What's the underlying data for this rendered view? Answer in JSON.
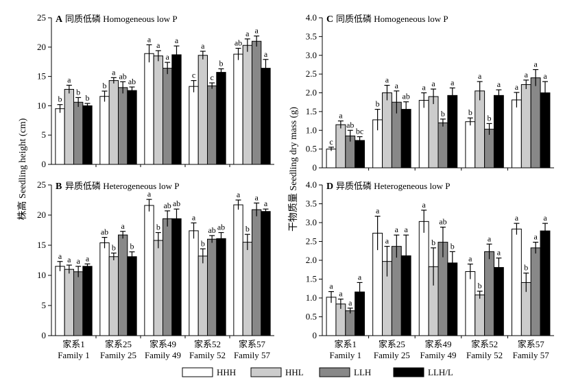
{
  "legend": {
    "entries": [
      {
        "label": "HHH",
        "color": "#ffffff"
      },
      {
        "label": "HHL",
        "color": "#cccccc"
      },
      {
        "label": "LLH",
        "color": "#888888"
      },
      {
        "label": "LLH/L",
        "color": "#000000"
      }
    ]
  },
  "axis_titles": {
    "left": "株高 Seedling height (cm)",
    "right": "干物质量 Seedling dry mass (g)"
  },
  "category_labels": [
    {
      "cn": "家系1",
      "en": "Family 1"
    },
    {
      "cn": "家系25",
      "en": "Family 25"
    },
    {
      "cn": "家系49",
      "en": "Family 49"
    },
    {
      "cn": "家系52",
      "en": "Family 52"
    },
    {
      "cn": "家系57",
      "en": "Family 57"
    }
  ],
  "chart_data": [
    {
      "type": "bar",
      "panel": "A",
      "title": "同质低磷 Homogeneous low P",
      "ylabel": "株高 Seedling height (cm)",
      "ylim": [
        0,
        25
      ],
      "yticks": [
        0,
        5,
        10,
        15,
        20,
        25
      ],
      "categories": [
        "Family 1",
        "Family 25",
        "Family 49",
        "Family 52",
        "Family 57"
      ],
      "series": [
        {
          "name": "HHH",
          "values": [
            9.5,
            11.6,
            18.9,
            13.3,
            18.8
          ],
          "errors": [
            0.7,
            0.9,
            1.5,
            1.0,
            1.0
          ],
          "labels": [
            "b",
            "b",
            "a",
            "c",
            "ab"
          ]
        },
        {
          "name": "HHL",
          "values": [
            12.8,
            14.3,
            18.5,
            18.6,
            20.3
          ],
          "errors": [
            0.7,
            0.5,
            0.9,
            0.7,
            1.1
          ],
          "labels": [
            "a",
            "a",
            "a",
            "a",
            "a"
          ]
        },
        {
          "name": "LLH",
          "values": [
            10.6,
            13.1,
            16.4,
            13.4,
            21.0
          ],
          "errors": [
            0.8,
            1.0,
            1.0,
            0.5,
            0.9
          ],
          "labels": [
            "b",
            "ab",
            "a",
            "c",
            "a"
          ]
        },
        {
          "name": "LLH/L",
          "values": [
            10.0,
            12.6,
            18.7,
            15.7,
            16.4
          ],
          "errors": [
            0.4,
            0.6,
            1.5,
            0.6,
            1.5
          ],
          "labels": [
            "b",
            "ab",
            "a",
            "b",
            "a"
          ]
        }
      ]
    },
    {
      "type": "bar",
      "panel": "B",
      "title": "异质低磷 Heterogeneous low P",
      "ylabel": "株高 Seedling height (cm)",
      "ylim": [
        0,
        25
      ],
      "yticks": [
        0,
        5,
        10,
        15,
        20,
        25
      ],
      "categories": [
        "Family 1",
        "Family 25",
        "Family 49",
        "Family 52",
        "Family 57"
      ],
      "series": [
        {
          "name": "HHH",
          "values": [
            11.5,
            15.4,
            21.6,
            17.4,
            21.7
          ],
          "errors": [
            0.8,
            0.9,
            1.0,
            1.3,
            0.8
          ],
          "labels": [
            "a",
            "ab",
            "a",
            "a",
            "a"
          ]
        },
        {
          "name": "HHL",
          "values": [
            11.0,
            13.1,
            15.8,
            13.2,
            15.5
          ],
          "errors": [
            0.7,
            0.6,
            1.3,
            1.2,
            1.3
          ],
          "labels": [
            "a",
            "b",
            "b",
            "b",
            "b"
          ]
        },
        {
          "name": "LLH",
          "values": [
            10.6,
            16.7,
            19.4,
            16.0,
            20.9
          ],
          "errors": [
            0.9,
            0.6,
            1.3,
            0.6,
            1.1
          ],
          "labels": [
            "a",
            "a",
            "ab",
            "ab",
            "a"
          ]
        },
        {
          "name": "LLH/L",
          "values": [
            11.5,
            13.1,
            19.4,
            16.1,
            20.6
          ],
          "errors": [
            0.4,
            0.8,
            1.6,
            1.0,
            0.4
          ],
          "labels": [
            "a",
            "b",
            "ab",
            "ab",
            "a"
          ]
        }
      ]
    },
    {
      "type": "bar",
      "panel": "C",
      "title": "同质低磷 Homogeneous low P",
      "ylabel": "干物质量 Seedling dry mass (g)",
      "ylim": [
        0,
        4.0
      ],
      "yticks": [
        0,
        0.5,
        1.0,
        1.5,
        2.0,
        2.5,
        3.0,
        3.5,
        4.0
      ],
      "categories": [
        "Family 1",
        "Family 25",
        "Family 49",
        "Family 52",
        "Family 57"
      ],
      "series": [
        {
          "name": "HHH",
          "values": [
            0.5,
            1.28,
            1.8,
            1.23,
            1.81
          ],
          "errors": [
            0.05,
            0.28,
            0.2,
            0.1,
            0.2
          ],
          "labels": [
            "c",
            "b",
            "a",
            "b",
            "a"
          ]
        },
        {
          "name": "HHL",
          "values": [
            1.15,
            2.0,
            1.9,
            2.05,
            2.22
          ],
          "errors": [
            0.1,
            0.2,
            0.2,
            0.25,
            0.12
          ],
          "labels": [
            "a",
            "a",
            "a",
            "a",
            "a"
          ]
        },
        {
          "name": "LLH",
          "values": [
            0.85,
            1.75,
            1.2,
            1.03,
            2.4
          ],
          "errors": [
            0.15,
            0.3,
            0.1,
            0.15,
            0.22
          ],
          "labels": [
            "ab",
            "a",
            "b",
            "b",
            "a"
          ]
        },
        {
          "name": "LLH/L",
          "values": [
            0.73,
            1.56,
            1.93,
            1.93,
            2.0
          ],
          "errors": [
            0.1,
            0.2,
            0.2,
            0.15,
            0.3
          ],
          "labels": [
            "bc",
            "ab",
            "a",
            "a",
            "a"
          ]
        }
      ]
    },
    {
      "type": "bar",
      "panel": "D",
      "title": "异质低磷 Heterogeneous low P",
      "ylabel": "干物质量 Seedling dry mass (g)",
      "ylim": [
        0,
        4.0
      ],
      "yticks": [
        0,
        0.5,
        1.0,
        1.5,
        2.0,
        2.5,
        3.0,
        3.5,
        4.0
      ],
      "categories": [
        "Family 1",
        "Family 25",
        "Family 49",
        "Family 52",
        "Family 57"
      ],
      "series": [
        {
          "name": "HHH",
          "values": [
            1.02,
            2.72,
            3.03,
            1.7,
            2.83
          ],
          "errors": [
            0.15,
            0.45,
            0.3,
            0.2,
            0.15
          ],
          "labels": [
            "a",
            "a",
            "a",
            "a",
            "a"
          ]
        },
        {
          "name": "HHL",
          "values": [
            0.84,
            1.97,
            1.83,
            1.08,
            1.41
          ],
          "errors": [
            0.13,
            0.4,
            0.5,
            0.1,
            0.25
          ],
          "labels": [
            "a",
            "a",
            "b",
            "b",
            "b"
          ]
        },
        {
          "name": "LLH",
          "values": [
            0.66,
            2.37,
            2.48,
            2.23,
            2.33
          ],
          "errors": [
            0.07,
            0.3,
            0.4,
            0.2,
            0.15
          ],
          "labels": [
            "a",
            "a",
            "ab",
            "a",
            "a"
          ]
        },
        {
          "name": "LLH/L",
          "values": [
            1.16,
            2.12,
            1.93,
            1.81,
            2.78
          ],
          "errors": [
            0.25,
            0.55,
            0.3,
            0.25,
            0.2
          ],
          "labels": [
            "a",
            "a",
            "b",
            "a",
            "a"
          ]
        }
      ]
    }
  ]
}
